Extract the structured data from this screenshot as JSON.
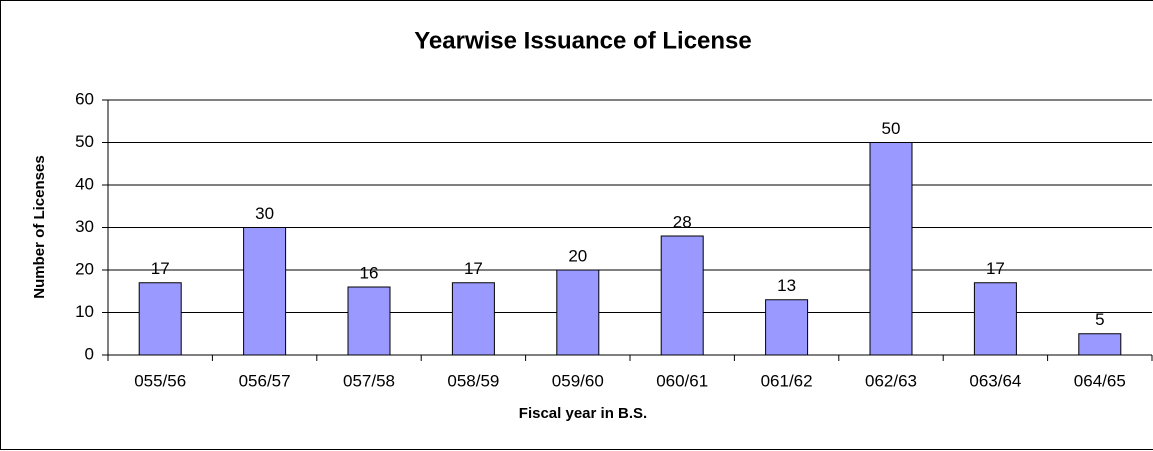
{
  "chart_data": {
    "type": "bar",
    "title": "Yearwise Issuance of License",
    "x_label": "Fiscal year in B.S.",
    "y_label": "Number of Licenses",
    "categories": [
      "055/56",
      "056/57",
      "057/58",
      "058/59",
      "059/60",
      "060/61",
      "061/62",
      "062/63",
      "063/64",
      "064/65"
    ],
    "values": [
      17,
      30,
      16,
      17,
      20,
      28,
      13,
      50,
      17,
      5
    ],
    "color": "#9999ff",
    "ylim": [
      0,
      60
    ],
    "yticks": [
      0,
      10,
      20,
      30,
      40,
      50,
      60
    ],
    "grid": true
  }
}
